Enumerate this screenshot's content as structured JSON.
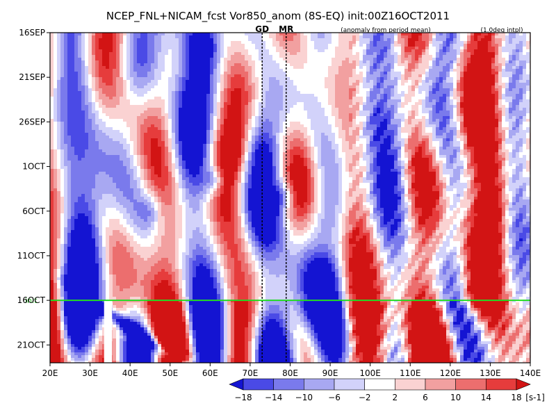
{
  "chart_data": {
    "type": "heatmap",
    "title": "NCEP_FNL+NICAM_fcst Vor850_anom (8S-EQ) init:00Z16OCT2011",
    "subtitle_left": "(anomaly from period mean)",
    "subtitle_right": "(1.0deg intpl)",
    "x_axis": {
      "ticks": [
        "20E",
        "30E",
        "40E",
        "50E",
        "60E",
        "70E",
        "80E",
        "90E",
        "100E",
        "110E",
        "120E",
        "130E",
        "140E"
      ],
      "range": [
        20,
        140
      ]
    },
    "y_axis": {
      "ticks": [
        "16SEP",
        "21SEP",
        "26SEP",
        "1OCT",
        "6OCT",
        "11OCT",
        "16OCT",
        "21OCT"
      ],
      "tick_days": [
        0,
        5,
        10,
        15,
        20,
        25,
        30,
        35
      ],
      "range_days": [
        0,
        37
      ]
    },
    "markers": [
      {
        "label": "GD",
        "lon": 73
      },
      {
        "label": "MR",
        "lon": 79
      }
    ],
    "init_line": {
      "label": "init",
      "day": 30
    },
    "colorbar": {
      "levels": [
        "-18",
        "-14",
        "-10",
        "-6",
        "-2",
        "2",
        "6",
        "10",
        "14",
        "18"
      ],
      "unit": "[s-1]",
      "colors": [
        "#1414d2",
        "#4a4ae6",
        "#7a7aec",
        "#a8a8f2",
        "#d2d2fa",
        "#ffffff",
        "#fad2d2",
        "#f2a0a0",
        "#ec6e6e",
        "#e63c3c",
        "#d21414"
      ]
    },
    "field_description": "850hPa relative vorticity anomaly, longitude-time Hovmoller"
  }
}
